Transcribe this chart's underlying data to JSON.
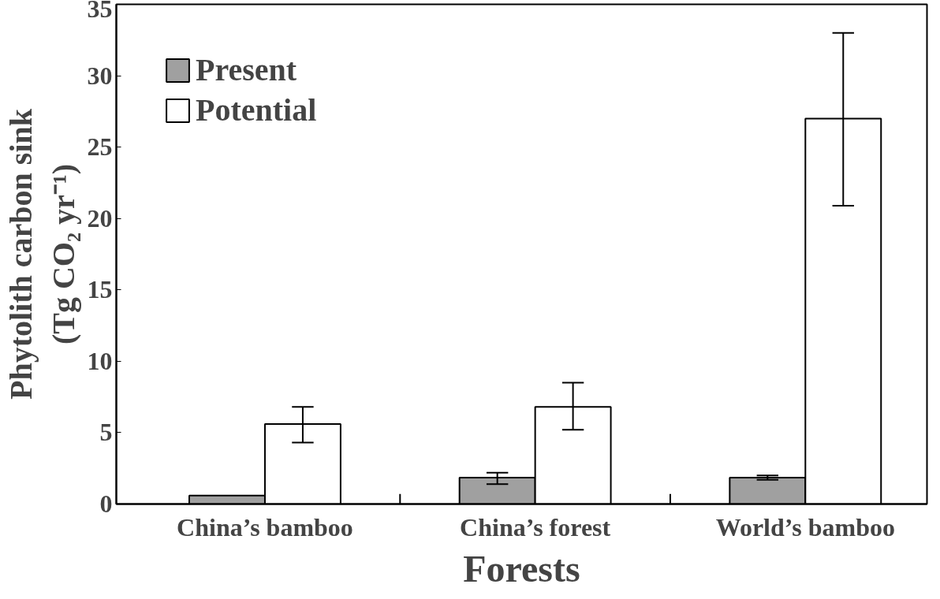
{
  "chart_data": {
    "type": "bar",
    "xlabel": "Forests",
    "ylabel": "Phytolith carbon sink\n(Tg CO₂ yr⁻¹)",
    "categories": [
      "China’s bamboo",
      "China’s forest",
      "World’s bamboo"
    ],
    "series": [
      {
        "name": "Present",
        "color": "#a0a0a0",
        "values": [
          0.6,
          1.85,
          1.85
        ],
        "errors": [
          null,
          [
            1.4,
            2.2
          ],
          [
            1.7,
            2.0
          ]
        ]
      },
      {
        "name": "Potential",
        "color": "#ffffff",
        "values": [
          5.6,
          6.8,
          27.0
        ],
        "errors": [
          [
            4.3,
            6.8
          ],
          [
            5.2,
            8.5
          ],
          [
            20.9,
            33.0
          ]
        ]
      }
    ],
    "ylim": [
      0,
      35
    ],
    "yticks": [
      0,
      5,
      10,
      15,
      20,
      25,
      30,
      35
    ],
    "grid": false,
    "legend": "top left"
  }
}
